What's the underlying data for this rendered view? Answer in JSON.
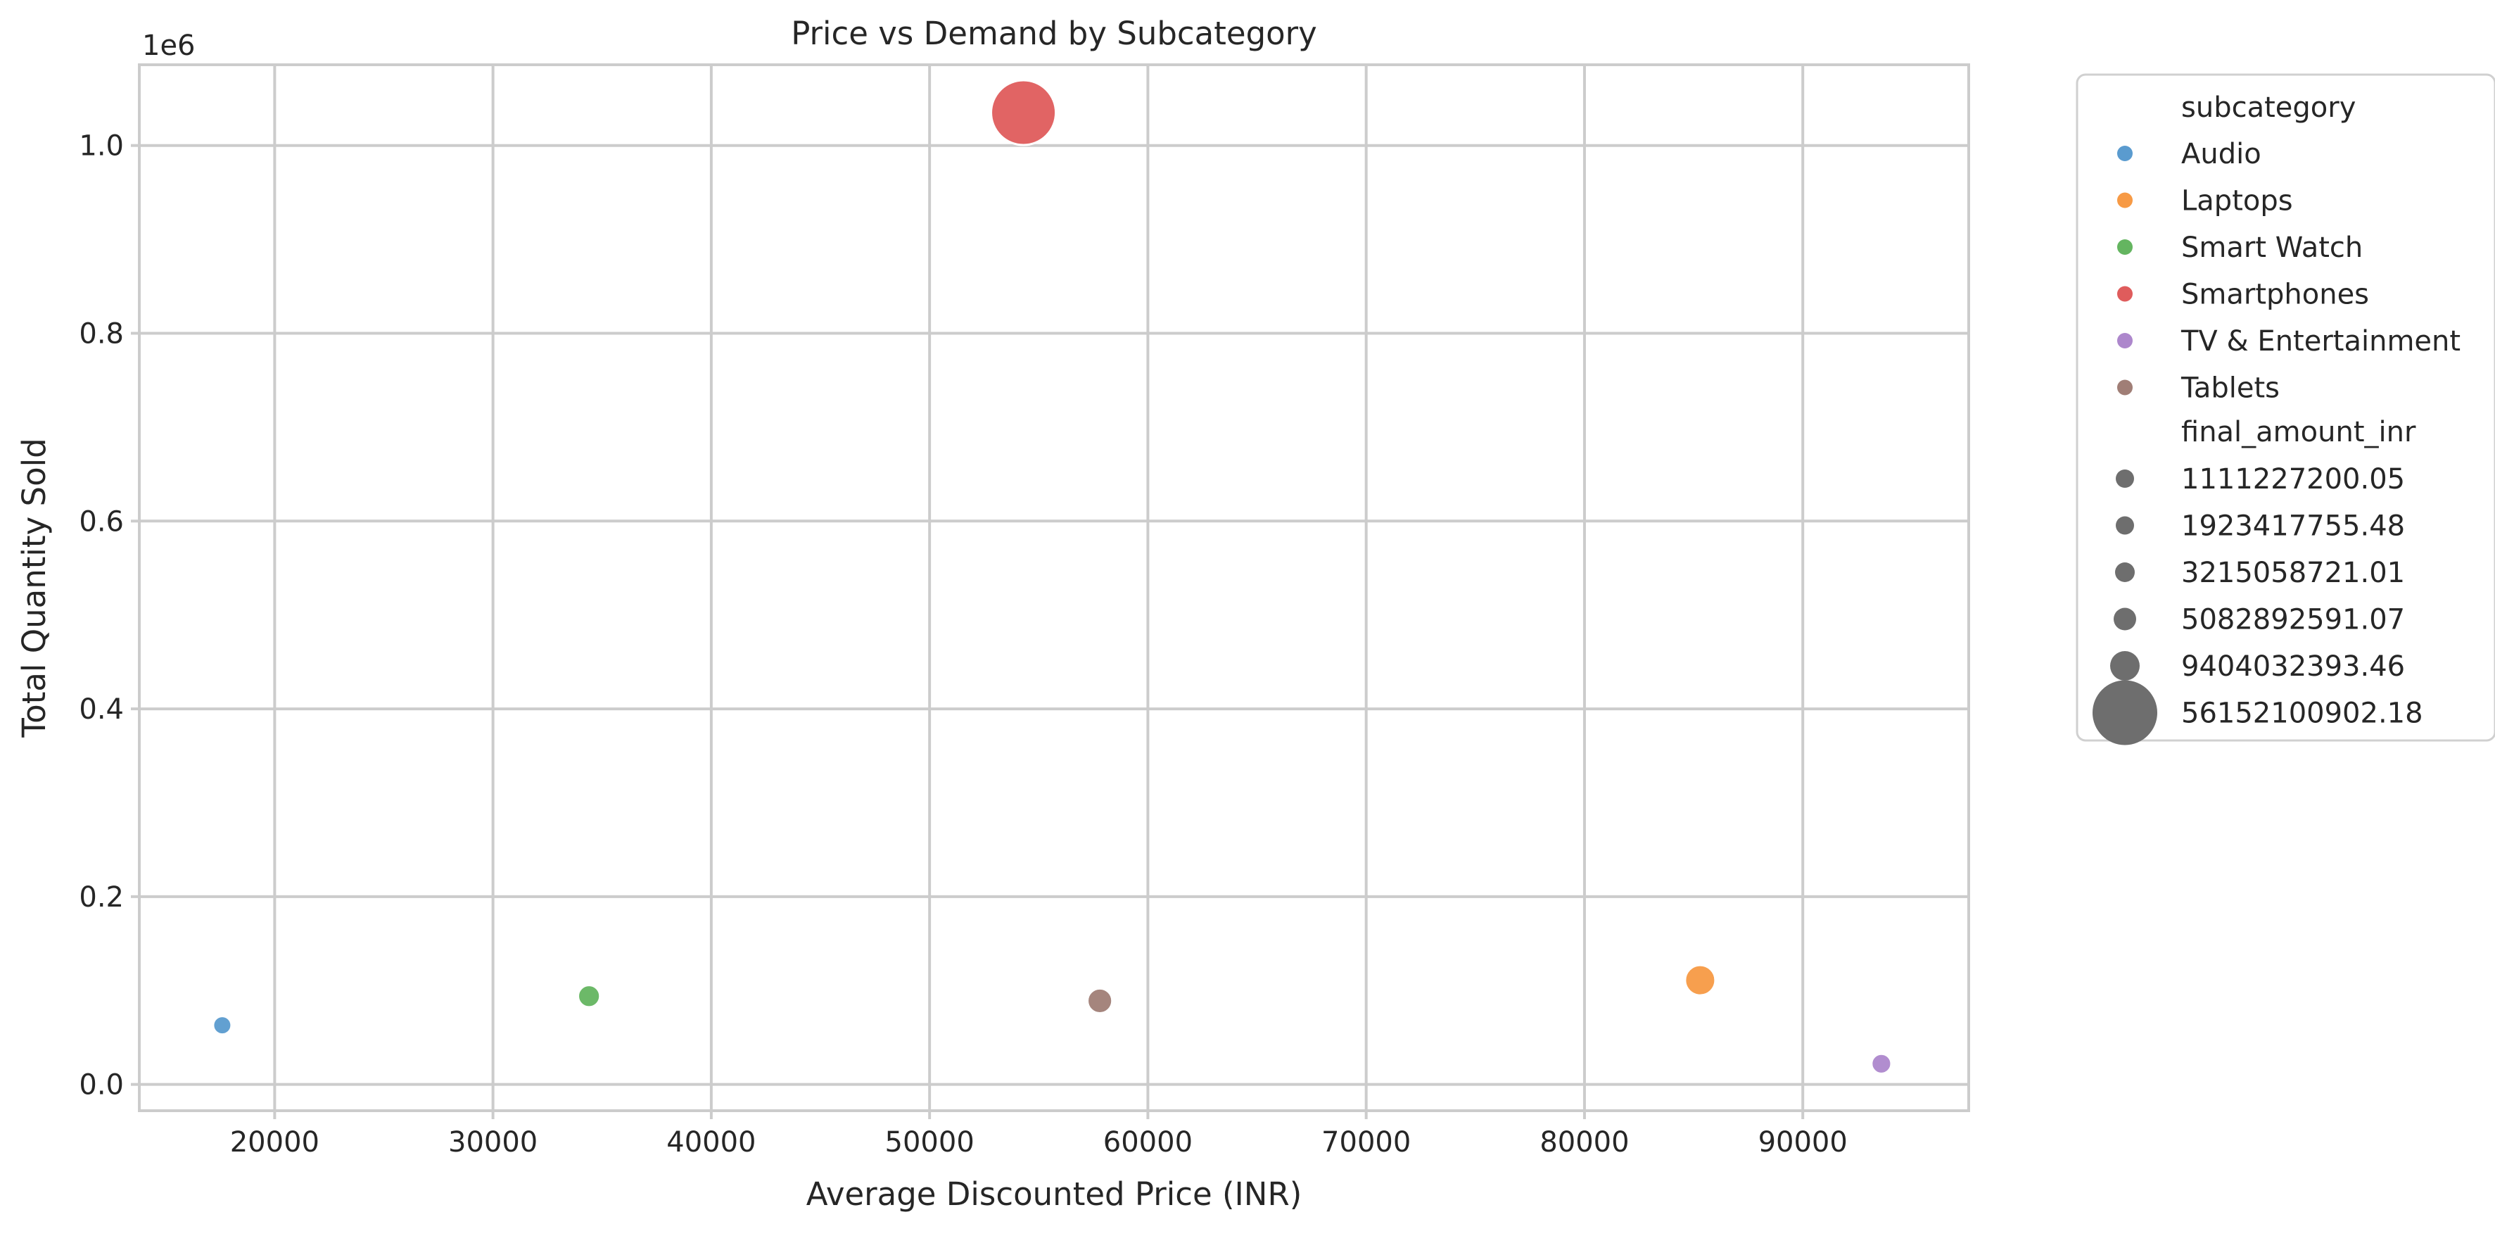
{
  "chart_data": {
    "type": "scatter",
    "title": "Price vs Demand by Subcategory",
    "xlabel": "Average Discounted Price (INR)",
    "ylabel": "Total Quantity Sold",
    "y_offset_label": "1e6",
    "xlim": [
      13800,
      97600
    ],
    "ylim": [
      -28000,
      1086000
    ],
    "x_ticks": [
      20000,
      30000,
      40000,
      50000,
      60000,
      70000,
      80000,
      90000
    ],
    "x_tick_labels": [
      "20000",
      "30000",
      "40000",
      "50000",
      "60000",
      "70000",
      "80000",
      "90000"
    ],
    "y_ticks": [
      0,
      200000,
      400000,
      600000,
      800000,
      1000000
    ],
    "y_tick_labels": [
      "0.0",
      "0.2",
      "0.4",
      "0.6",
      "0.8",
      "1.0"
    ],
    "grid": true,
    "legend_position": "outside-right",
    "hue_title": "subcategory",
    "size_title": "final_amount_inr",
    "points": [
      {
        "subcategory": "Audio",
        "x": 17600,
        "y": 63000,
        "final_amount_inr": 1111227200.05,
        "color": "#5a9bcf"
      },
      {
        "subcategory": "Smart Watch",
        "x": 34400,
        "y": 94000,
        "final_amount_inr": 3215058721.01,
        "color": "#64b560"
      },
      {
        "subcategory": "Smartphones",
        "x": 54300,
        "y": 1035000,
        "final_amount_inr": 56152100902.18,
        "color": "#df5c5c"
      },
      {
        "subcategory": "Tablets",
        "x": 57800,
        "y": 89000,
        "final_amount_inr": 5082892591.07,
        "color": "#a07e76"
      },
      {
        "subcategory": "Laptops",
        "x": 85300,
        "y": 111000,
        "final_amount_inr": 9404032393.46,
        "color": "#f79a45"
      },
      {
        "subcategory": "TV & Entertainment",
        "x": 93600,
        "y": 22000,
        "final_amount_inr": 1923417755.48,
        "color": "#ad87cc"
      }
    ],
    "hue_legend": [
      {
        "label": "Audio",
        "color": "#5a9bcf"
      },
      {
        "label": "Laptops",
        "color": "#f79a45"
      },
      {
        "label": "Smart Watch",
        "color": "#64b560"
      },
      {
        "label": "Smartphones",
        "color": "#df5c5c"
      },
      {
        "label": "TV & Entertainment",
        "color": "#ad87cc"
      },
      {
        "label": "Tablets",
        "color": "#a07e76"
      }
    ],
    "size_legend": [
      {
        "label": "1111227200.05",
        "value": 1111227200.05
      },
      {
        "label": "1923417755.48",
        "value": 1923417755.48
      },
      {
        "label": "3215058721.01",
        "value": 3215058721.01
      },
      {
        "label": "5082892591.07",
        "value": 5082892591.07
      },
      {
        "label": "9404032393.46",
        "value": 9404032393.46
      },
      {
        "label": "56152100902.18",
        "value": 56152100902.18
      }
    ],
    "size_marker_color": "#6e6e6e"
  }
}
